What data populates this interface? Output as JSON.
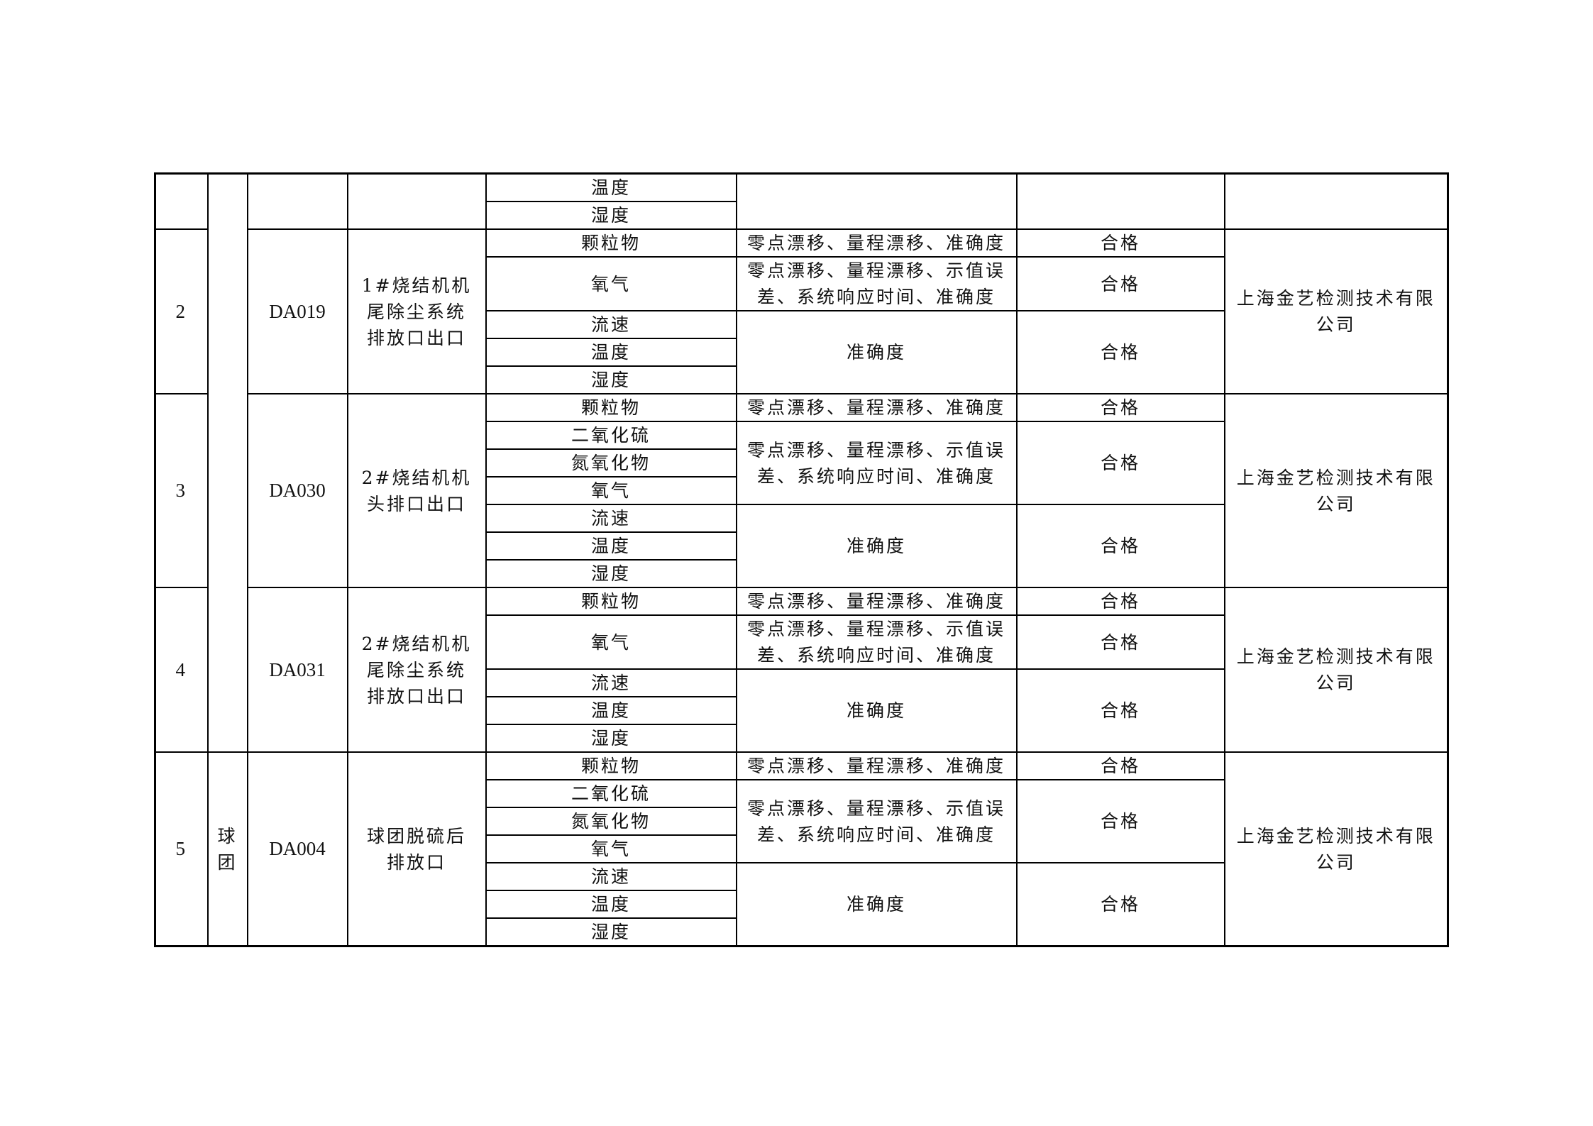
{
  "table": {
    "top_fragment": {
      "params": [
        "温度",
        "湿度"
      ]
    },
    "category_groups": [
      {
        "label": "",
        "span_rows": 21
      },
      {
        "label": "球\n团",
        "span_rows": 7
      }
    ],
    "blocks": [
      {
        "no": "2",
        "code": "DA019",
        "name": "1#烧结机机\n尾除尘系统\n排放口出口",
        "params": [
          {
            "label": "颗粒物",
            "span": 1
          },
          {
            "label": "氧气",
            "span": 2
          },
          {
            "label": "流速",
            "span": 1
          },
          {
            "label": "温度",
            "span": 1
          },
          {
            "label": "湿度",
            "span": 1
          }
        ],
        "checks": [
          {
            "method": "零点漂移、量程漂移、准确度",
            "result": "合格",
            "span": 1
          },
          {
            "method": "零点漂移、量程漂移、示值误\n差、系统响应时间、准确度",
            "result": "合格",
            "span": 2
          },
          {
            "method": "准确度",
            "result": "合格",
            "span": 3
          }
        ],
        "company": "上海金艺检测技术有限\n公司"
      },
      {
        "no": "3",
        "code": "DA030",
        "name": "2#烧结机机\n头排口出口",
        "params": [
          {
            "label": "颗粒物",
            "span": 1
          },
          {
            "label": "二氧化硫",
            "span": 1
          },
          {
            "label": "氮氧化物",
            "span": 1
          },
          {
            "label": "氧气",
            "span": 1
          },
          {
            "label": "流速",
            "span": 1
          },
          {
            "label": "温度",
            "span": 1
          },
          {
            "label": "湿度",
            "span": 1
          }
        ],
        "checks": [
          {
            "method": "零点漂移、量程漂移、准确度",
            "result": "合格",
            "span": 1
          },
          {
            "method": "零点漂移、量程漂移、示值误\n差、系统响应时间、准确度",
            "result": "合格",
            "span": 3
          },
          {
            "method": "准确度",
            "result": "合格",
            "span": 3
          }
        ],
        "company": "上海金艺检测技术有限\n公司"
      },
      {
        "no": "4",
        "code": "DA031",
        "name": "2#烧结机机\n尾除尘系统\n排放口出口",
        "params": [
          {
            "label": "颗粒物",
            "span": 1
          },
          {
            "label": "氧气",
            "span": 2
          },
          {
            "label": "流速",
            "span": 1
          },
          {
            "label": "温度",
            "span": 1
          },
          {
            "label": "湿度",
            "span": 1
          }
        ],
        "checks": [
          {
            "method": "零点漂移、量程漂移、准确度",
            "result": "合格",
            "span": 1
          },
          {
            "method": "零点漂移、量程漂移、示值误\n差、系统响应时间、准确度",
            "result": "合格",
            "span": 2
          },
          {
            "method": "准确度",
            "result": "合格",
            "span": 3
          }
        ],
        "company": "上海金艺检测技术有限\n公司"
      },
      {
        "no": "5",
        "code": "DA004",
        "name": "球团脱硫后\n排放口",
        "params": [
          {
            "label": "颗粒物",
            "span": 1
          },
          {
            "label": "二氧化硫",
            "span": 1
          },
          {
            "label": "氮氧化物",
            "span": 1
          },
          {
            "label": "氧气",
            "span": 1
          },
          {
            "label": "流速",
            "span": 1
          },
          {
            "label": "温度",
            "span": 1
          },
          {
            "label": "湿度",
            "span": 1
          }
        ],
        "checks": [
          {
            "method": "零点漂移、量程漂移、准确度",
            "result": "合格",
            "span": 1
          },
          {
            "method": "零点漂移、量程漂移、示值误\n差、系统响应时间、准确度",
            "result": "合格",
            "span": 3
          },
          {
            "method": "准确度",
            "result": "合格",
            "span": 3
          }
        ],
        "company": "上海金艺检测技术有限\n公司"
      }
    ]
  }
}
